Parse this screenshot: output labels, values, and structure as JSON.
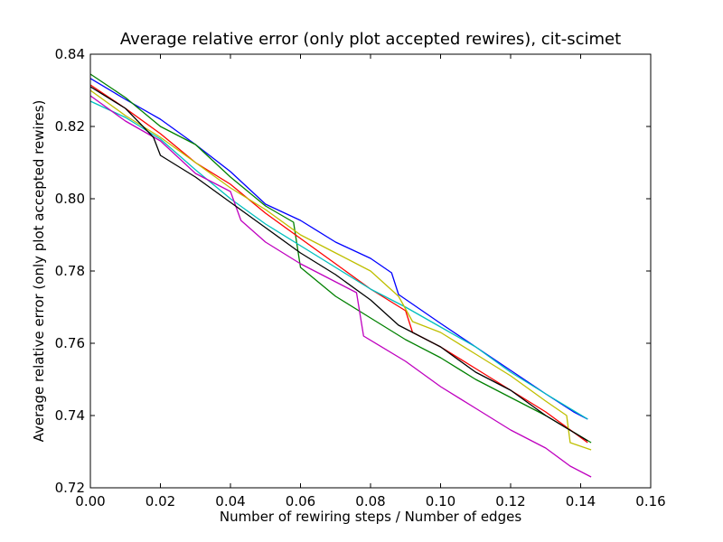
{
  "chart_data": {
    "type": "line",
    "title": "Average relative error (only plot accepted rewires), cit-scimet",
    "xlabel": "Number of rewiring steps / Number of edges",
    "ylabel": "Average relative error (only plot accepted rewires)",
    "xlim": [
      0.0,
      0.16
    ],
    "ylim": [
      0.72,
      0.84
    ],
    "xticks": [
      "0.00",
      "0.02",
      "0.04",
      "0.06",
      "0.08",
      "0.10",
      "0.12",
      "0.14",
      "0.16"
    ],
    "yticks": [
      "0.72",
      "0.74",
      "0.76",
      "0.78",
      "0.80",
      "0.82",
      "0.84"
    ],
    "grid": false,
    "legend": "none",
    "series": [
      {
        "color": "#0000ff",
        "points": [
          [
            0.0,
            0.8333
          ],
          [
            0.01,
            0.8275
          ],
          [
            0.02,
            0.822
          ],
          [
            0.03,
            0.815
          ],
          [
            0.04,
            0.8075
          ],
          [
            0.05,
            0.7985
          ],
          [
            0.06,
            0.794
          ],
          [
            0.07,
            0.788
          ],
          [
            0.08,
            0.7835
          ],
          [
            0.086,
            0.7795
          ],
          [
            0.088,
            0.7735
          ],
          [
            0.1,
            0.7655
          ],
          [
            0.11,
            0.759
          ],
          [
            0.12,
            0.7525
          ],
          [
            0.13,
            0.746
          ],
          [
            0.138,
            0.741
          ],
          [
            0.142,
            0.739
          ]
        ]
      },
      {
        "color": "#008000",
        "points": [
          [
            0.0,
            0.8345
          ],
          [
            0.01,
            0.828
          ],
          [
            0.02,
            0.82
          ],
          [
            0.03,
            0.815
          ],
          [
            0.04,
            0.806
          ],
          [
            0.05,
            0.798
          ],
          [
            0.058,
            0.7935
          ],
          [
            0.06,
            0.781
          ],
          [
            0.07,
            0.773
          ],
          [
            0.08,
            0.767
          ],
          [
            0.09,
            0.761
          ],
          [
            0.1,
            0.756
          ],
          [
            0.11,
            0.75
          ],
          [
            0.12,
            0.745
          ],
          [
            0.13,
            0.74
          ],
          [
            0.143,
            0.7325
          ]
        ]
      },
      {
        "color": "#ff0000",
        "points": [
          [
            0.0,
            0.8315
          ],
          [
            0.01,
            0.825
          ],
          [
            0.02,
            0.818
          ],
          [
            0.03,
            0.81
          ],
          [
            0.04,
            0.804
          ],
          [
            0.05,
            0.796
          ],
          [
            0.06,
            0.789
          ],
          [
            0.07,
            0.782
          ],
          [
            0.08,
            0.775
          ],
          [
            0.09,
            0.769
          ],
          [
            0.092,
            0.763
          ],
          [
            0.1,
            0.759
          ],
          [
            0.11,
            0.753
          ],
          [
            0.12,
            0.747
          ],
          [
            0.13,
            0.741
          ],
          [
            0.142,
            0.7325
          ]
        ]
      },
      {
        "color": "#00bfbf",
        "points": [
          [
            0.0,
            0.827
          ],
          [
            0.01,
            0.8225
          ],
          [
            0.02,
            0.8165
          ],
          [
            0.03,
            0.808
          ],
          [
            0.04,
            0.8
          ],
          [
            0.05,
            0.793
          ],
          [
            0.06,
            0.787
          ],
          [
            0.07,
            0.781
          ],
          [
            0.08,
            0.775
          ],
          [
            0.09,
            0.77
          ],
          [
            0.1,
            0.7645
          ],
          [
            0.11,
            0.759
          ],
          [
            0.12,
            0.752
          ],
          [
            0.13,
            0.746
          ],
          [
            0.142,
            0.739
          ]
        ]
      },
      {
        "color": "#bf00bf",
        "points": [
          [
            0.0,
            0.8285
          ],
          [
            0.01,
            0.8215
          ],
          [
            0.02,
            0.816
          ],
          [
            0.03,
            0.807
          ],
          [
            0.04,
            0.802
          ],
          [
            0.043,
            0.794
          ],
          [
            0.05,
            0.788
          ],
          [
            0.06,
            0.782
          ],
          [
            0.07,
            0.777
          ],
          [
            0.076,
            0.774
          ],
          [
            0.078,
            0.762
          ],
          [
            0.09,
            0.755
          ],
          [
            0.1,
            0.748
          ],
          [
            0.11,
            0.742
          ],
          [
            0.12,
            0.736
          ],
          [
            0.13,
            0.731
          ],
          [
            0.137,
            0.726
          ],
          [
            0.143,
            0.723
          ]
        ]
      },
      {
        "color": "#bfbf00",
        "points": [
          [
            0.0,
            0.83
          ],
          [
            0.01,
            0.823
          ],
          [
            0.02,
            0.817
          ],
          [
            0.03,
            0.81
          ],
          [
            0.04,
            0.803
          ],
          [
            0.05,
            0.797
          ],
          [
            0.06,
            0.79
          ],
          [
            0.07,
            0.785
          ],
          [
            0.08,
            0.78
          ],
          [
            0.088,
            0.773
          ],
          [
            0.092,
            0.766
          ],
          [
            0.1,
            0.763
          ],
          [
            0.11,
            0.757
          ],
          [
            0.12,
            0.751
          ],
          [
            0.13,
            0.744
          ],
          [
            0.136,
            0.74
          ],
          [
            0.137,
            0.7325
          ],
          [
            0.143,
            0.7305
          ]
        ]
      },
      {
        "color": "#000000",
        "points": [
          [
            0.0,
            0.831
          ],
          [
            0.01,
            0.825
          ],
          [
            0.018,
            0.817
          ],
          [
            0.02,
            0.812
          ],
          [
            0.03,
            0.806
          ],
          [
            0.04,
            0.799
          ],
          [
            0.05,
            0.792
          ],
          [
            0.06,
            0.785
          ],
          [
            0.07,
            0.779
          ],
          [
            0.08,
            0.772
          ],
          [
            0.088,
            0.765
          ],
          [
            0.1,
            0.759
          ],
          [
            0.11,
            0.752
          ],
          [
            0.12,
            0.747
          ],
          [
            0.13,
            0.74
          ],
          [
            0.142,
            0.733
          ]
        ]
      }
    ]
  }
}
